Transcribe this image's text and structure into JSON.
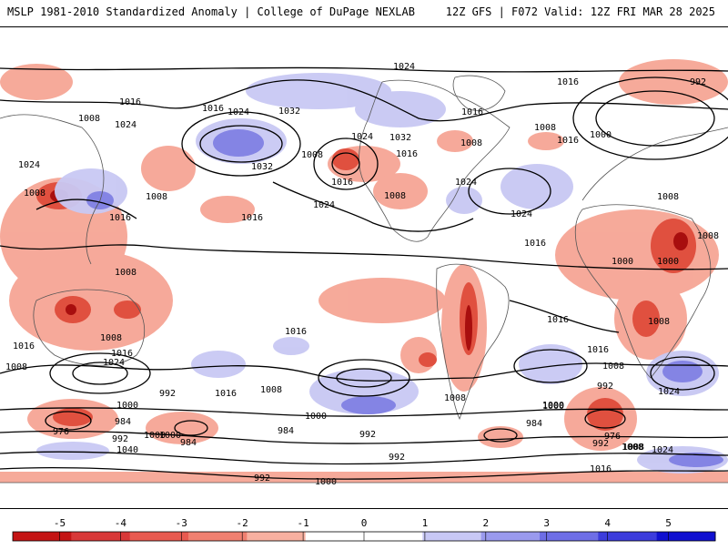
{
  "header": {
    "left": "MSLP 1981-2010 Standardized Anomaly | College of DuPage NEXLAB",
    "right": "12Z GFS | F072 Valid: 12Z FRI MAR 28 2025"
  },
  "map": {
    "isobar_labels": [
      {
        "text": "1024"
      },
      {
        "text": "1016"
      },
      {
        "text": "1008"
      },
      {
        "text": "1024"
      },
      {
        "text": "1016"
      },
      {
        "text": "1024"
      },
      {
        "text": "1032"
      },
      {
        "text": "1032"
      },
      {
        "text": "1008"
      },
      {
        "text": "1016"
      },
      {
        "text": "1024"
      },
      {
        "text": "1024"
      },
      {
        "text": "1032"
      },
      {
        "text": "1016"
      },
      {
        "text": "1008"
      },
      {
        "text": "1024"
      },
      {
        "text": "1016"
      },
      {
        "text": "1008"
      },
      {
        "text": "1000"
      },
      {
        "text": "1016"
      },
      {
        "text": "992"
      },
      {
        "text": "1016"
      },
      {
        "text": "1008"
      },
      {
        "text": "1024"
      },
      {
        "text": "1008"
      },
      {
        "text": "1000"
      },
      {
        "text": "1024"
      },
      {
        "text": "1016"
      },
      {
        "text": "1008"
      },
      {
        "text": "1016"
      },
      {
        "text": "1008"
      },
      {
        "text": "1008"
      },
      {
        "text": "1008"
      },
      {
        "text": "1000"
      },
      {
        "text": "1008"
      },
      {
        "text": "1016"
      },
      {
        "text": "1008"
      },
      {
        "text": "1016"
      },
      {
        "text": "1016"
      },
      {
        "text": "1024"
      },
      {
        "text": "1008"
      },
      {
        "text": "1016"
      },
      {
        "text": "1008"
      },
      {
        "text": "1016"
      },
      {
        "text": "1016"
      },
      {
        "text": "1008"
      },
      {
        "text": "992"
      },
      {
        "text": "1000"
      },
      {
        "text": "1008"
      },
      {
        "text": "1016"
      },
      {
        "text": "1024"
      },
      {
        "text": "1008"
      },
      {
        "text": "1000"
      },
      {
        "text": "992"
      },
      {
        "text": "1000"
      },
      {
        "text": "984"
      },
      {
        "text": "976"
      },
      {
        "text": "992"
      },
      {
        "text": "1040"
      },
      {
        "text": "1000"
      },
      {
        "text": "984"
      },
      {
        "text": "992"
      },
      {
        "text": "1000"
      },
      {
        "text": "984"
      },
      {
        "text": "992"
      },
      {
        "text": "984"
      },
      {
        "text": "976"
      },
      {
        "text": "992"
      },
      {
        "text": "1000"
      },
      {
        "text": "1008"
      },
      {
        "text": "1024"
      },
      {
        "text": "1016"
      },
      {
        "text": "992"
      },
      {
        "text": "1000"
      }
    ]
  },
  "colorbar": {
    "ticks": [
      "-5",
      "-4",
      "-3",
      "-2",
      "-1",
      "0",
      "1",
      "2",
      "3",
      "4",
      "5"
    ],
    "colors": [
      "#c41414",
      "#d83838",
      "#e85a50",
      "#f08070",
      "#f7b0a0",
      "#ffffff",
      "#ffffff",
      "#c8c8f5",
      "#9a9aee",
      "#6e6ee6",
      "#3c3cdc",
      "#1010d0"
    ]
  },
  "colors": {
    "negative_anomaly": "#e8544a",
    "strong_negative": "#b01010",
    "positive_anomaly": "#8c8ce8",
    "land_boundaries": "#555555"
  }
}
